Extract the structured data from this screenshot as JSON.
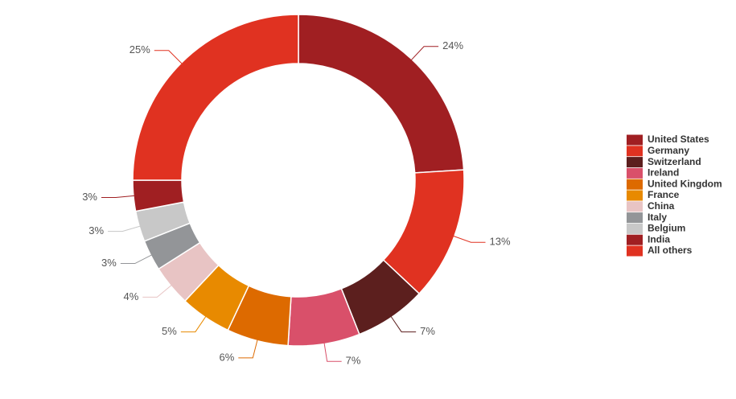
{
  "chart_data": {
    "type": "donut",
    "categories": [
      "United States",
      "Germany",
      "Switzerland",
      "Ireland",
      "United Kingdom",
      "France",
      "China",
      "Italy",
      "Belgium",
      "India",
      "All others"
    ],
    "values": [
      24,
      13,
      7,
      7,
      6,
      5,
      4,
      3,
      3,
      3,
      25
    ],
    "value_labels": [
      "24%",
      "13%",
      "7%",
      "7%",
      "6%",
      "5%",
      "4%",
      "3%",
      "3%",
      "3%",
      "25%"
    ],
    "colors": [
      "#a01f22",
      "#e03221",
      "#5c1f1e",
      "#d9506a",
      "#dd6a00",
      "#e88a00",
      "#e8c4c4",
      "#939598",
      "#c8c8c8",
      "#a01f22",
      "#e03221"
    ],
    "legend": "right"
  }
}
